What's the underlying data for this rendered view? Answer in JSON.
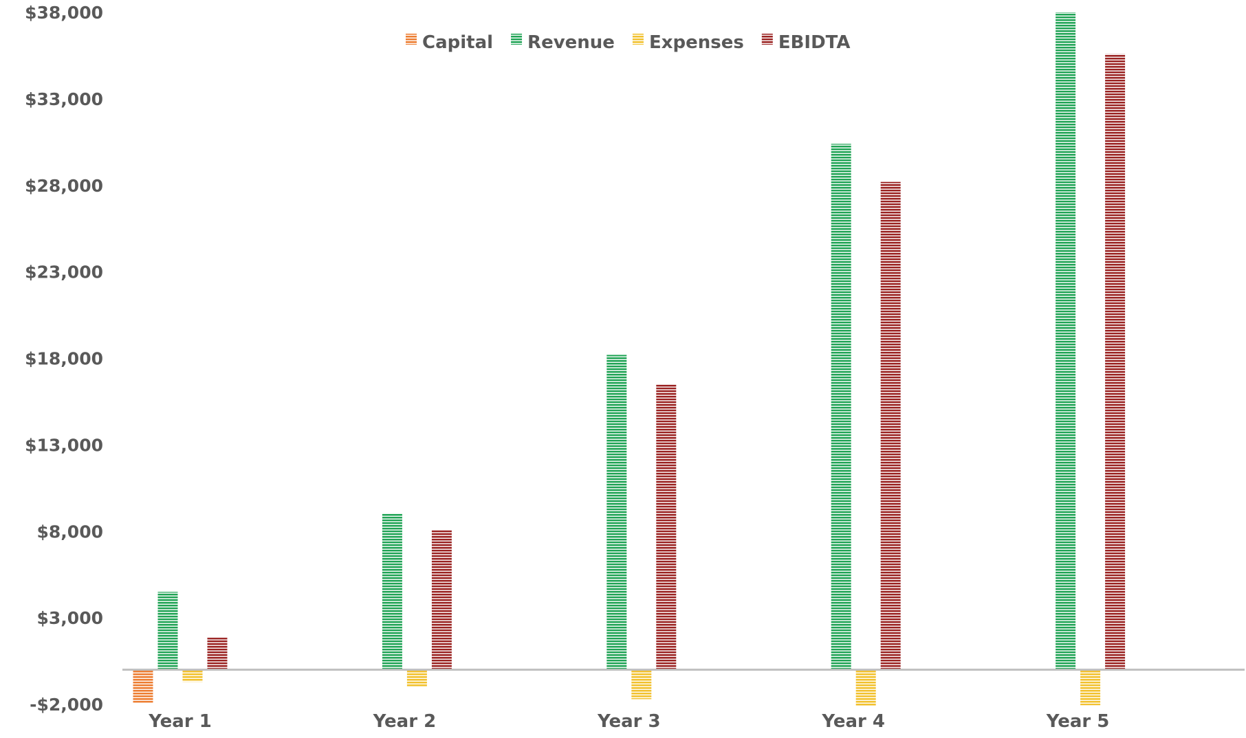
{
  "chart_data": {
    "type": "bar",
    "title": "",
    "xlabel": "",
    "ylabel": "",
    "categories": [
      "Year 1",
      "Year 2",
      "Year 3",
      "Year 4",
      "Year 5"
    ],
    "series": [
      {
        "name": "Capital",
        "color": "#ED7D31",
        "values": [
          -1900,
          null,
          null,
          null,
          null
        ]
      },
      {
        "name": "Revenue",
        "color": "#21A456",
        "values": [
          4500,
          9050,
          18200,
          30400,
          38000
        ]
      },
      {
        "name": "Expenses",
        "color": "#F2C12E",
        "values": [
          -700,
          -1000,
          -1700,
          -2100,
          -2050
        ]
      },
      {
        "name": "EBIDTA",
        "color": "#9B2423",
        "values": [
          1850,
          8050,
          16500,
          28200,
          35600
        ]
      }
    ],
    "ylim": [
      -2000,
      38000
    ],
    "yticks": [
      -2000,
      3000,
      8000,
      13000,
      18000,
      23000,
      28000,
      33000,
      38000
    ],
    "ytick_labels": [
      "-$2,000",
      "$3,000",
      "$8,000",
      "$13,000",
      "$18,000",
      "$23,000",
      "$28,000",
      "$33,000",
      "$38,000"
    ],
    "grid": false,
    "legend_position": "top-center",
    "bar_pattern": "horizontal-stripes"
  }
}
